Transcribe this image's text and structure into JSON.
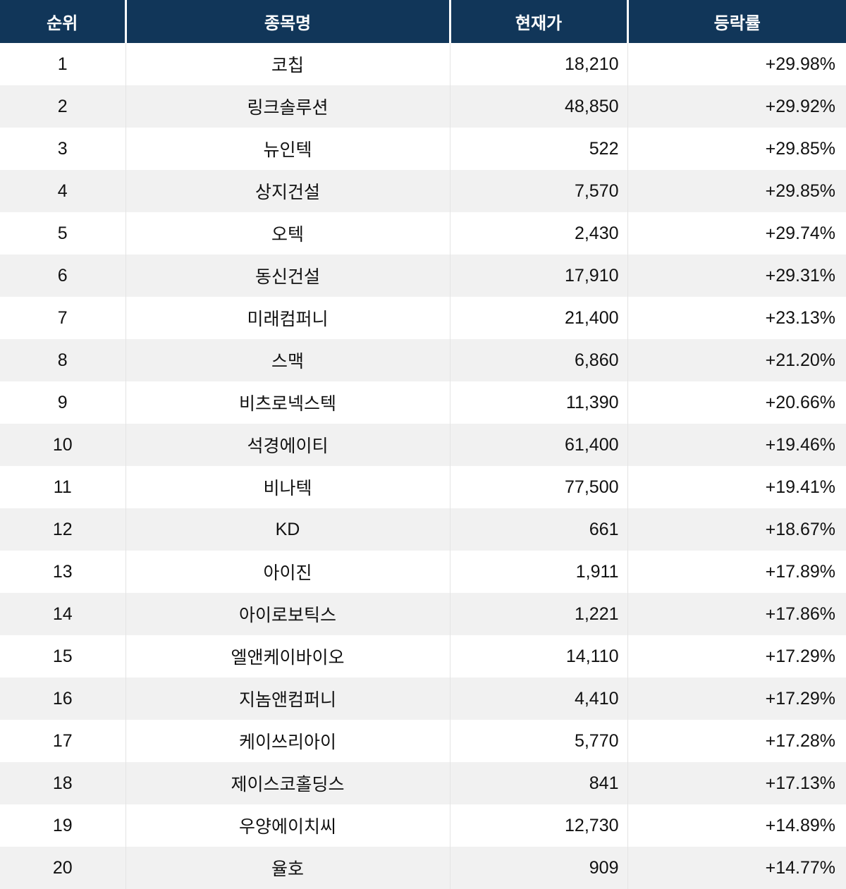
{
  "table": {
    "columns": [
      {
        "id": "rank",
        "label": "순위"
      },
      {
        "id": "name",
        "label": "종목명"
      },
      {
        "id": "price",
        "label": "현재가"
      },
      {
        "id": "change",
        "label": "등락률"
      }
    ],
    "rows": [
      {
        "rank": "1",
        "name": "코칩",
        "price": "18,210",
        "change": "+29.98%"
      },
      {
        "rank": "2",
        "name": "링크솔루션",
        "price": "48,850",
        "change": "+29.92%"
      },
      {
        "rank": "3",
        "name": "뉴인텍",
        "price": "522",
        "change": "+29.85%"
      },
      {
        "rank": "4",
        "name": "상지건설",
        "price": "7,570",
        "change": "+29.85%"
      },
      {
        "rank": "5",
        "name": "오텍",
        "price": "2,430",
        "change": "+29.74%"
      },
      {
        "rank": "6",
        "name": "동신건설",
        "price": "17,910",
        "change": "+29.31%"
      },
      {
        "rank": "7",
        "name": "미래컴퍼니",
        "price": "21,400",
        "change": "+23.13%"
      },
      {
        "rank": "8",
        "name": "스맥",
        "price": "6,860",
        "change": "+21.20%"
      },
      {
        "rank": "9",
        "name": "비츠로넥스텍",
        "price": "11,390",
        "change": "+20.66%"
      },
      {
        "rank": "10",
        "name": "석경에이티",
        "price": "61,400",
        "change": "+19.46%"
      },
      {
        "rank": "11",
        "name": "비나텍",
        "price": "77,500",
        "change": "+19.41%"
      },
      {
        "rank": "12",
        "name": "KD",
        "price": "661",
        "change": "+18.67%"
      },
      {
        "rank": "13",
        "name": "아이진",
        "price": "1,911",
        "change": "+17.89%"
      },
      {
        "rank": "14",
        "name": "아이로보틱스",
        "price": "1,221",
        "change": "+17.86%"
      },
      {
        "rank": "15",
        "name": "엘앤케이바이오",
        "price": "14,110",
        "change": "+17.29%"
      },
      {
        "rank": "16",
        "name": "지놈앤컴퍼니",
        "price": "4,410",
        "change": "+17.29%"
      },
      {
        "rank": "17",
        "name": "케이쓰리아이",
        "price": "5,770",
        "change": "+17.28%"
      },
      {
        "rank": "18",
        "name": "제이스코홀딩스",
        "price": "841",
        "change": "+17.13%"
      },
      {
        "rank": "19",
        "name": "우양에이치씨",
        "price": "12,730",
        "change": "+14.89%"
      },
      {
        "rank": "20",
        "name": "율호",
        "price": "909",
        "change": "+14.77%"
      }
    ]
  },
  "colors": {
    "header_bg": "#113659",
    "header_text": "#ffffff",
    "row_bg": "#ffffff",
    "row_alt_bg": "#f1f1f1",
    "body_text": "#111111",
    "grid_line": "#e4e4e4"
  },
  "chart_data": {
    "type": "table",
    "columns": [
      "순위",
      "종목명",
      "현재가",
      "등락률"
    ],
    "rows": [
      {
        "rank": 1,
        "name": "코칩",
        "price": 18210,
        "change_pct": 29.98
      },
      {
        "rank": 2,
        "name": "링크솔루션",
        "price": 48850,
        "change_pct": 29.92
      },
      {
        "rank": 3,
        "name": "뉴인텍",
        "price": 522,
        "change_pct": 29.85
      },
      {
        "rank": 4,
        "name": "상지건설",
        "price": 7570,
        "change_pct": 29.85
      },
      {
        "rank": 5,
        "name": "오텍",
        "price": 2430,
        "change_pct": 29.74
      },
      {
        "rank": 6,
        "name": "동신건설",
        "price": 17910,
        "change_pct": 29.31
      },
      {
        "rank": 7,
        "name": "미래컴퍼니",
        "price": 21400,
        "change_pct": 23.13
      },
      {
        "rank": 8,
        "name": "스맥",
        "price": 6860,
        "change_pct": 21.2
      },
      {
        "rank": 9,
        "name": "비츠로넥스텍",
        "price": 11390,
        "change_pct": 20.66
      },
      {
        "rank": 10,
        "name": "석경에이티",
        "price": 61400,
        "change_pct": 19.46
      },
      {
        "rank": 11,
        "name": "비나텍",
        "price": 77500,
        "change_pct": 19.41
      },
      {
        "rank": 12,
        "name": "KD",
        "price": 661,
        "change_pct": 18.67
      },
      {
        "rank": 13,
        "name": "아이진",
        "price": 1911,
        "change_pct": 17.89
      },
      {
        "rank": 14,
        "name": "아이로보틱스",
        "price": 1221,
        "change_pct": 17.86
      },
      {
        "rank": 15,
        "name": "엘앤케이바이오",
        "price": 14110,
        "change_pct": 17.29
      },
      {
        "rank": 16,
        "name": "지놈앤컴퍼니",
        "price": 4410,
        "change_pct": 17.29
      },
      {
        "rank": 17,
        "name": "케이쓰리아이",
        "price": 5770,
        "change_pct": 17.28
      },
      {
        "rank": 18,
        "name": "제이스코홀딩스",
        "price": 841,
        "change_pct": 17.13
      },
      {
        "rank": 19,
        "name": "우양에이치씨",
        "price": 12730,
        "change_pct": 14.89
      },
      {
        "rank": 20,
        "name": "율호",
        "price": 909,
        "change_pct": 14.77
      }
    ]
  }
}
